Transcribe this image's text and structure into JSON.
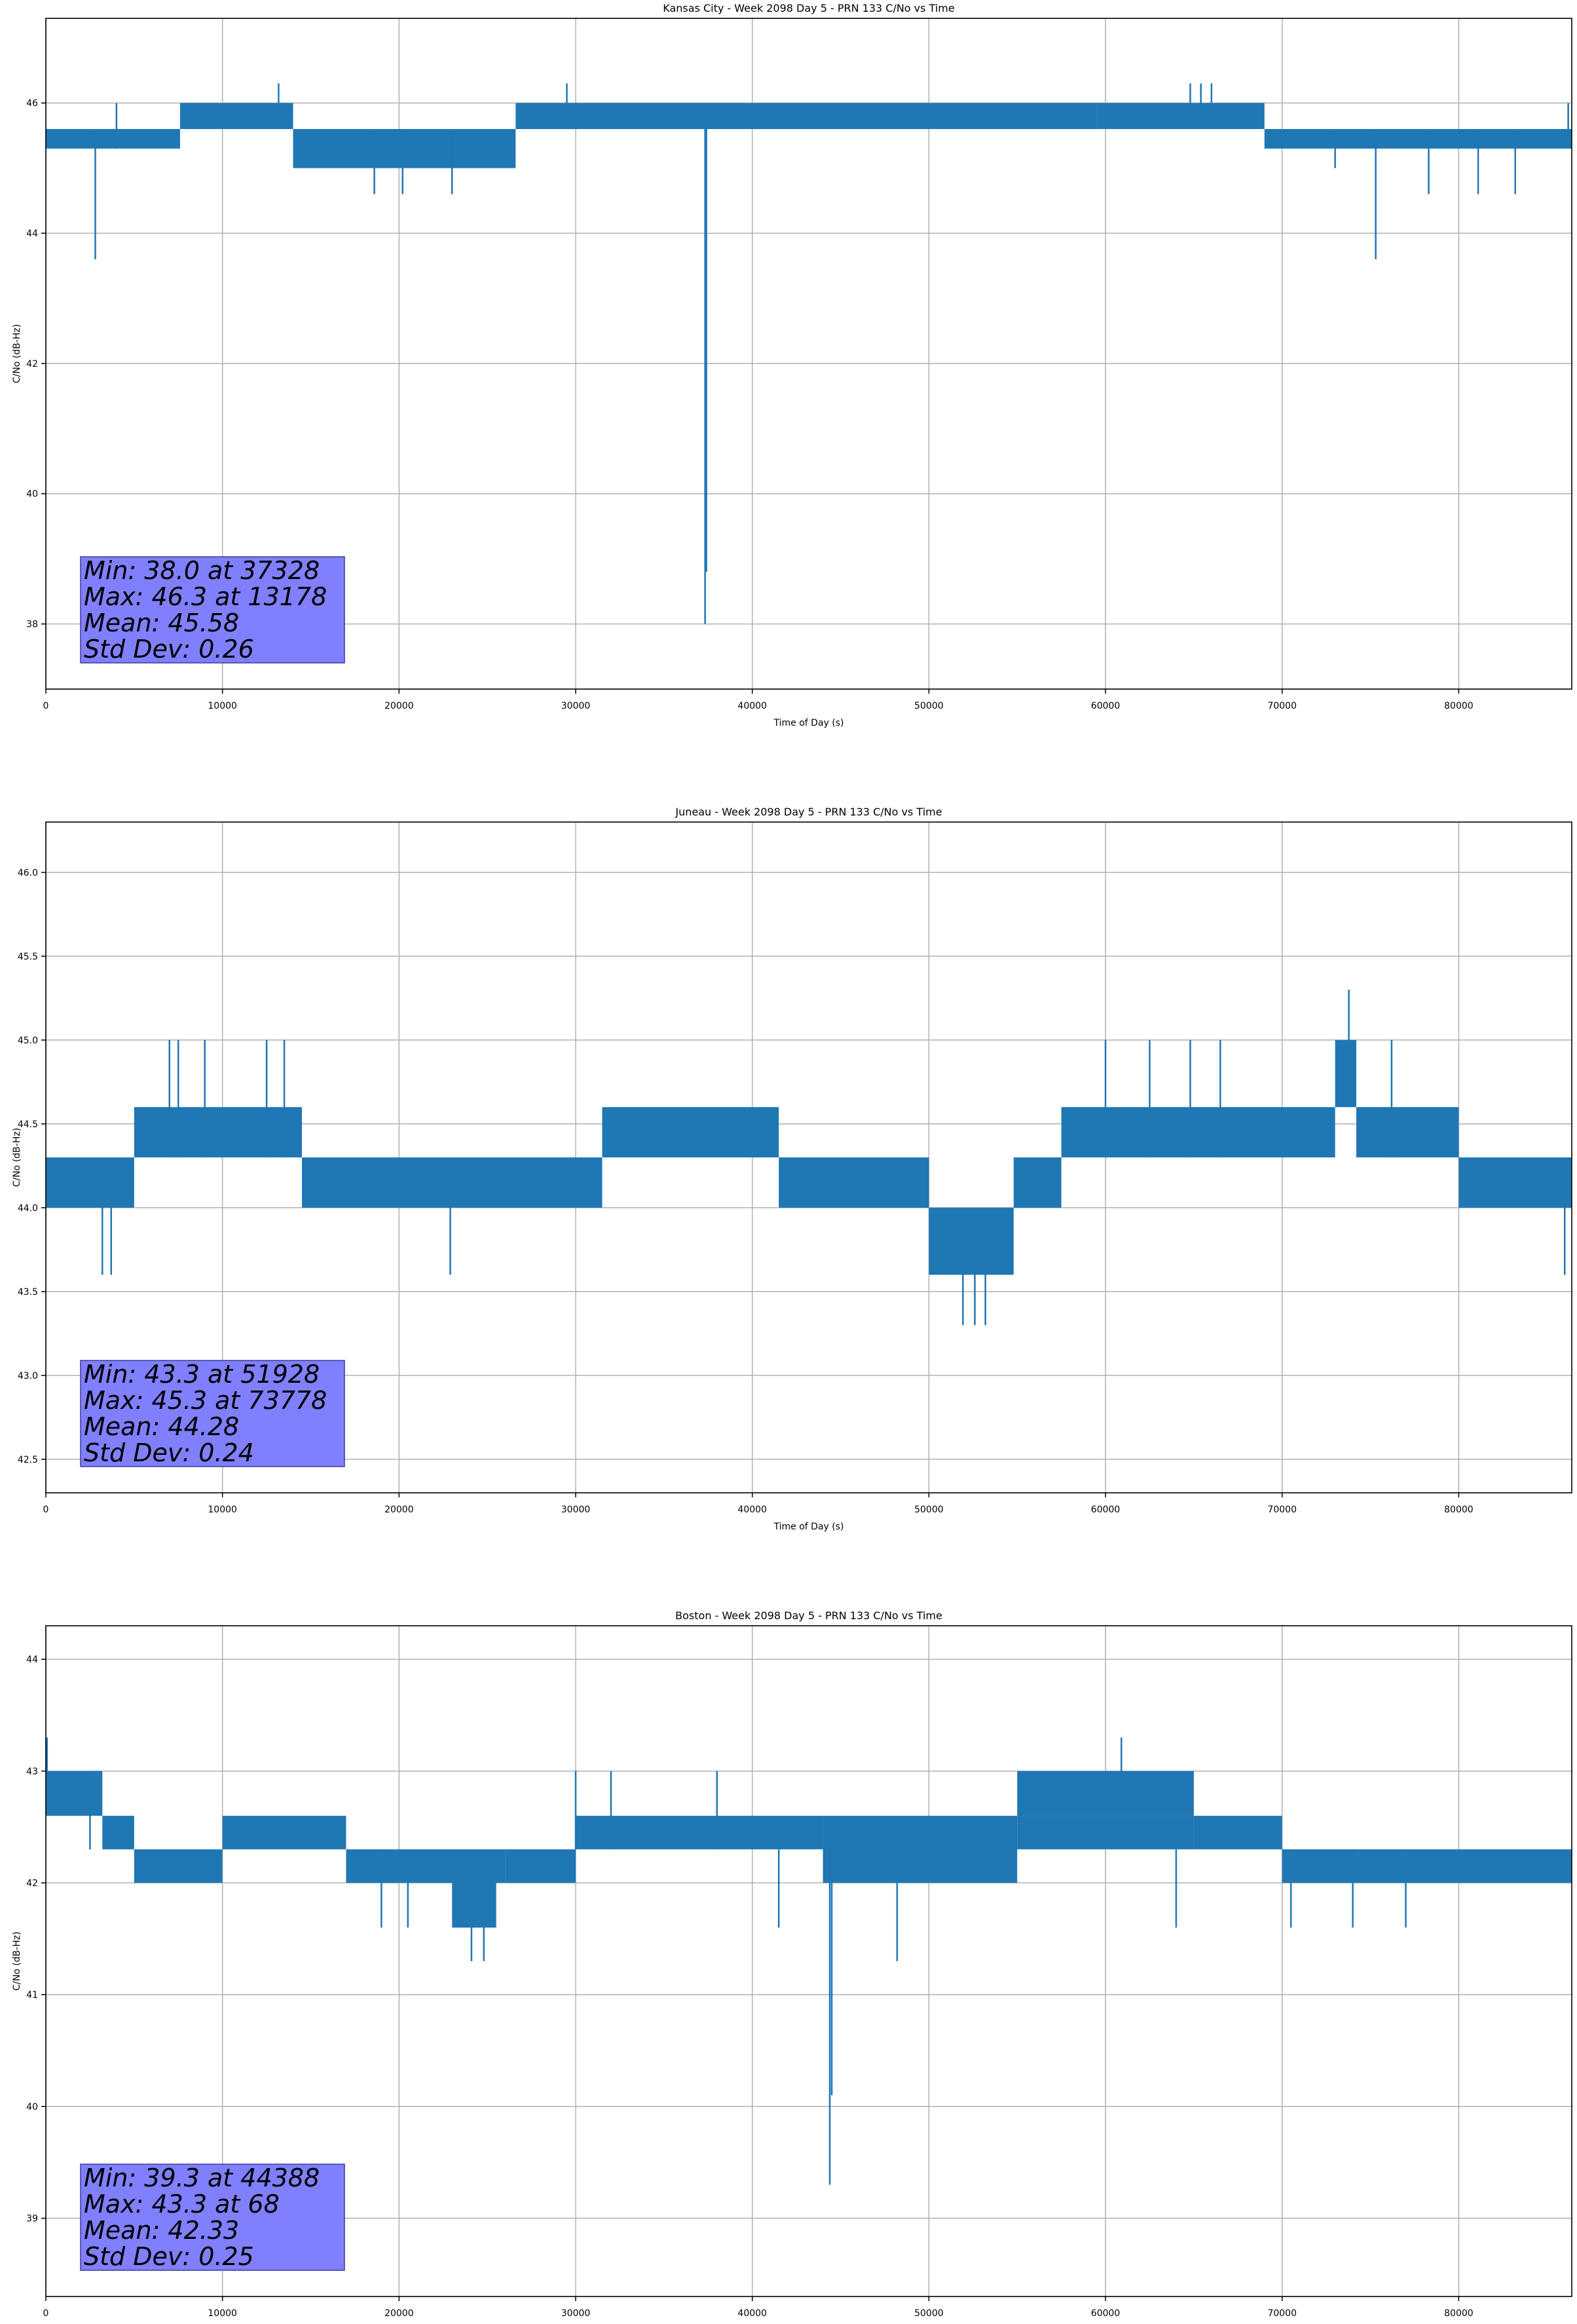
{
  "figure": {
    "line_color": "#1f77b4",
    "stats_box_color": "#8080ff"
  },
  "chart_data": [
    {
      "type": "line",
      "title": "Kansas City - Week 2098 Day 5 - PRN 133 C/No vs Time",
      "xlabel": "Time of Day (s)",
      "ylabel": "C/No (dB-Hz)",
      "xlim": [
        0,
        86400
      ],
      "ylim": [
        37.0,
        47.3
      ],
      "xticks": [
        0,
        10000,
        20000,
        30000,
        40000,
        50000,
        60000,
        70000,
        80000
      ],
      "yticks": [
        38,
        40,
        42,
        44,
        46
      ],
      "ytick_labels": [
        "38",
        "40",
        "42",
        "44",
        "46"
      ],
      "grid": true,
      "series": [
        {
          "color": "#1f77b4",
          "bands": [
            {
              "x": [
                0,
                7600
              ],
              "low": 45.3,
              "high": 45.6
            },
            {
              "x": [
                7600,
                14000
              ],
              "low": 45.6,
              "high": 46.0
            },
            {
              "x": [
                14000,
                26600
              ],
              "low": 45.0,
              "high": 45.6
            },
            {
              "x": [
                26600,
                59500
              ],
              "low": 45.6,
              "high": 46.0
            },
            {
              "x": [
                59500,
                69000
              ],
              "low": 45.6,
              "high": 46.0
            },
            {
              "x": [
                69000,
                86400
              ],
              "low": 45.3,
              "high": 45.6
            }
          ],
          "spikes": [
            {
              "x": 2800,
              "low": 43.6,
              "high": 45.6
            },
            {
              "x": 4000,
              "low": 45.3,
              "high": 46.0
            },
            {
              "x": 13178,
              "low": 45.6,
              "high": 46.3
            },
            {
              "x": 18600,
              "low": 44.6,
              "high": 45.6
            },
            {
              "x": 20200,
              "low": 44.6,
              "high": 45.6
            },
            {
              "x": 23000,
              "low": 44.6,
              "high": 45.6
            },
            {
              "x": 29500,
              "low": 45.6,
              "high": 46.3
            },
            {
              "x": 37328,
              "low": 38.0,
              "high": 45.6
            },
            {
              "x": 37400,
              "low": 38.8,
              "high": 45.6
            },
            {
              "x": 64800,
              "low": 45.6,
              "high": 46.3
            },
            {
              "x": 65400,
              "low": 45.6,
              "high": 46.3
            },
            {
              "x": 66000,
              "low": 45.6,
              "high": 46.3
            },
            {
              "x": 73000,
              "low": 45.0,
              "high": 45.6
            },
            {
              "x": 75300,
              "low": 43.6,
              "high": 45.6
            },
            {
              "x": 78300,
              "low": 44.6,
              "high": 45.6
            },
            {
              "x": 81100,
              "low": 44.6,
              "high": 45.6
            },
            {
              "x": 83200,
              "low": 44.6,
              "high": 45.6
            },
            {
              "x": 86200,
              "low": 45.3,
              "high": 46.0
            }
          ]
        }
      ],
      "stats": [
        "Min: 38.0 at 37328",
        "Max: 46.3 at 13178",
        "Mean: 45.58",
        "Std Dev: 0.26"
      ]
    },
    {
      "type": "line",
      "title": "Juneau - Week 2098 Day 5 - PRN 133 C/No vs Time",
      "xlabel": "Time of Day (s)",
      "ylabel": "C/No (dB-Hz)",
      "xlim": [
        0,
        86400
      ],
      "ylim": [
        42.3,
        46.3
      ],
      "xticks": [
        0,
        10000,
        20000,
        30000,
        40000,
        50000,
        60000,
        70000,
        80000
      ],
      "yticks": [
        42.5,
        43.0,
        43.5,
        44.0,
        44.5,
        45.0,
        45.5,
        46.0
      ],
      "ytick_labels": [
        "42.5",
        "43.0",
        "43.5",
        "44.0",
        "44.5",
        "45.0",
        "45.5",
        "46.0"
      ],
      "grid": true,
      "series": [
        {
          "color": "#1f77b4",
          "bands": [
            {
              "x": [
                0,
                5000
              ],
              "low": 44.0,
              "high": 44.3
            },
            {
              "x": [
                5000,
                14500
              ],
              "low": 44.3,
              "high": 44.6
            },
            {
              "x": [
                14500,
                31500
              ],
              "low": 44.0,
              "high": 44.3
            },
            {
              "x": [
                31500,
                41500
              ],
              "low": 44.3,
              "high": 44.6
            },
            {
              "x": [
                41500,
                50000
              ],
              "low": 44.0,
              "high": 44.3
            },
            {
              "x": [
                50000,
                54800
              ],
              "low": 43.6,
              "high": 44.0
            },
            {
              "x": [
                54800,
                57500
              ],
              "low": 44.0,
              "high": 44.3
            },
            {
              "x": [
                57500,
                73000
              ],
              "low": 44.3,
              "high": 44.6
            },
            {
              "x": [
                73000,
                74200
              ],
              "low": 44.6,
              "high": 45.0
            },
            {
              "x": [
                74200,
                80000
              ],
              "low": 44.3,
              "high": 44.6
            },
            {
              "x": [
                80000,
                86400
              ],
              "low": 44.0,
              "high": 44.3
            }
          ],
          "spikes": [
            {
              "x": 3200,
              "low": 43.6,
              "high": 44.3
            },
            {
              "x": 3700,
              "low": 43.6,
              "high": 44.3
            },
            {
              "x": 7000,
              "low": 44.3,
              "high": 45.0
            },
            {
              "x": 7500,
              "low": 44.3,
              "high": 45.0
            },
            {
              "x": 9000,
              "low": 44.3,
              "high": 45.0
            },
            {
              "x": 12500,
              "low": 44.3,
              "high": 45.0
            },
            {
              "x": 13500,
              "low": 44.3,
              "high": 45.0
            },
            {
              "x": 22900,
              "low": 43.6,
              "high": 44.3
            },
            {
              "x": 51928,
              "low": 43.3,
              "high": 44.0
            },
            {
              "x": 52600,
              "low": 43.3,
              "high": 44.0
            },
            {
              "x": 53200,
              "low": 43.3,
              "high": 44.0
            },
            {
              "x": 60000,
              "low": 44.3,
              "high": 45.0
            },
            {
              "x": 62500,
              "low": 44.3,
              "high": 45.0
            },
            {
              "x": 64800,
              "low": 44.3,
              "high": 45.0
            },
            {
              "x": 66500,
              "low": 44.3,
              "high": 45.0
            },
            {
              "x": 73778,
              "low": 44.6,
              "high": 45.3
            },
            {
              "x": 76200,
              "low": 44.3,
              "high": 45.0
            },
            {
              "x": 86000,
              "low": 43.6,
              "high": 44.3
            }
          ]
        }
      ],
      "stats": [
        "Min: 43.3 at 51928",
        "Max: 45.3 at 73778",
        "Mean: 44.28",
        "Std Dev: 0.24"
      ]
    },
    {
      "type": "line",
      "title": "Boston - Week 2098 Day 5 - PRN 133 C/No vs Time",
      "xlabel": "Time of Day (s)",
      "ylabel": "C/No (dB-Hz)",
      "xlim": [
        0,
        86400
      ],
      "ylim": [
        38.3,
        44.3
      ],
      "xticks": [
        0,
        10000,
        20000,
        30000,
        40000,
        50000,
        60000,
        70000,
        80000
      ],
      "yticks": [
        39,
        40,
        41,
        42,
        43,
        44
      ],
      "ytick_labels": [
        "39",
        "40",
        "41",
        "42",
        "43",
        "44"
      ],
      "grid": true,
      "series": [
        {
          "color": "#1f77b4",
          "bands": [
            {
              "x": [
                0,
                3200
              ],
              "low": 42.6,
              "high": 43.0
            },
            {
              "x": [
                3200,
                5000
              ],
              "low": 42.3,
              "high": 42.6
            },
            {
              "x": [
                5000,
                10000
              ],
              "low": 42.0,
              "high": 42.3
            },
            {
              "x": [
                10000,
                17000
              ],
              "low": 42.3,
              "high": 42.6
            },
            {
              "x": [
                17000,
                26000
              ],
              "low": 42.0,
              "high": 42.3
            },
            {
              "x": [
                23000,
                25500
              ],
              "low": 41.6,
              "high": 42.0
            },
            {
              "x": [
                26000,
                30000
              ],
              "low": 42.0,
              "high": 42.3
            },
            {
              "x": [
                30000,
                44000
              ],
              "low": 42.3,
              "high": 42.6
            },
            {
              "x": [
                44000,
                55000
              ],
              "low": 42.0,
              "high": 42.6
            },
            {
              "x": [
                55000,
                65000
              ],
              "low": 42.3,
              "high": 42.6
            },
            {
              "x": [
                55000,
                65000
              ],
              "low": 42.6,
              "high": 43.0
            },
            {
              "x": [
                65000,
                70000
              ],
              "low": 42.3,
              "high": 42.6
            },
            {
              "x": [
                70000,
                86400
              ],
              "low": 42.0,
              "high": 42.3
            }
          ],
          "spikes": [
            {
              "x": 68,
              "low": 42.6,
              "high": 43.3
            },
            {
              "x": 2500,
              "low": 42.3,
              "high": 43.0
            },
            {
              "x": 19000,
              "low": 41.6,
              "high": 42.3
            },
            {
              "x": 20500,
              "low": 41.6,
              "high": 42.3
            },
            {
              "x": 24100,
              "low": 41.3,
              "high": 42.0
            },
            {
              "x": 24800,
              "low": 41.3,
              "high": 42.0
            },
            {
              "x": 30000,
              "low": 42.3,
              "high": 43.0
            },
            {
              "x": 32000,
              "low": 42.3,
              "high": 43.0
            },
            {
              "x": 38000,
              "low": 42.3,
              "high": 43.0
            },
            {
              "x": 41500,
              "low": 41.6,
              "high": 42.3
            },
            {
              "x": 44388,
              "low": 39.3,
              "high": 42.3
            },
            {
              "x": 44500,
              "low": 40.1,
              "high": 42.3
            },
            {
              "x": 48200,
              "low": 41.3,
              "high": 42.3
            },
            {
              "x": 60900,
              "low": 42.6,
              "high": 43.3
            },
            {
              "x": 64000,
              "low": 41.6,
              "high": 42.3
            },
            {
              "x": 70500,
              "low": 41.6,
              "high": 42.3
            },
            {
              "x": 74000,
              "low": 41.6,
              "high": 42.3
            },
            {
              "x": 77000,
              "low": 41.6,
              "high": 42.3
            }
          ]
        }
      ],
      "stats": [
        "Min: 39.3 at 44388",
        "Max: 43.3 at 68",
        "Mean: 42.33",
        "Std Dev: 0.25"
      ]
    }
  ]
}
